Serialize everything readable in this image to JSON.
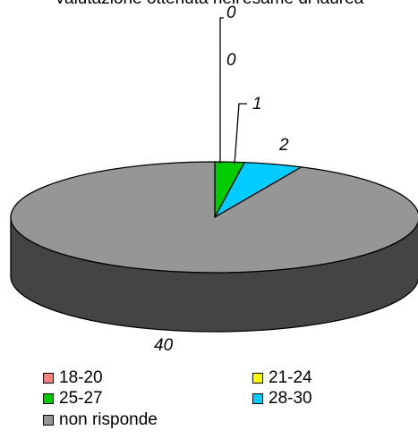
{
  "chart_data": {
    "type": "pie",
    "title": "Valutazione ottenuta nell'esame di laurea",
    "categories": [
      "18-20",
      "21-24",
      "25-27",
      "28-30",
      "non risponde"
    ],
    "values": [
      0,
      0,
      1,
      2,
      40
    ],
    "data_labels": [
      "0",
      "0",
      "1",
      "2",
      "40"
    ],
    "colors": [
      "#ff8080",
      "#ffff00",
      "#00cc00",
      "#00ccff",
      "#969696"
    ],
    "style": "3d",
    "legend": "bottom"
  }
}
